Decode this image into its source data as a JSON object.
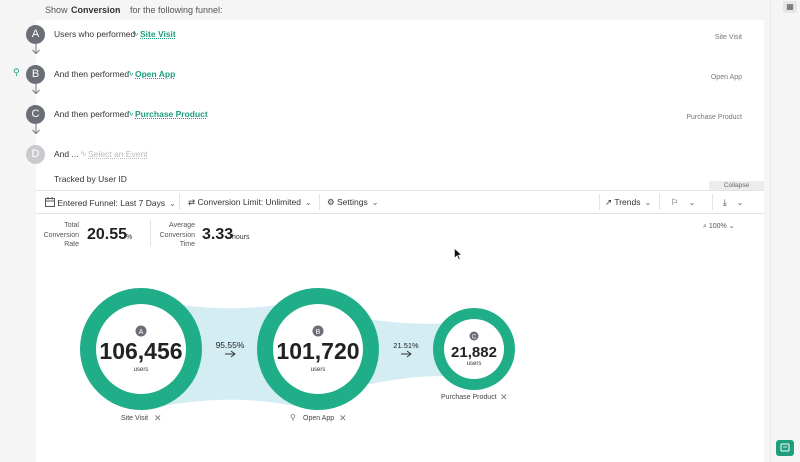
{
  "topbar": {
    "show_label": "Show",
    "metric": "Conversion",
    "suffix": "for the following funnel:"
  },
  "steps": [
    {
      "letter": "A",
      "prefix": "Users who performed",
      "event": "Site Visit",
      "right_label": "Site Visit",
      "active": true
    },
    {
      "letter": "B",
      "prefix": "And then performed",
      "event": "Open App",
      "right_label": "Open App",
      "active": true
    },
    {
      "letter": "C",
      "prefix": "And then performed",
      "event": "Purchase Product",
      "right_label": "Purchase Product",
      "active": true
    },
    {
      "letter": "D",
      "prefix": "And ...",
      "event": "Select an Event",
      "right_label": "",
      "active": false
    }
  ],
  "tracked_by": "Tracked by User ID",
  "collapse_label": "Collapse",
  "toolbar": {
    "entered_funnel": "Entered Funnel: Last 7 Days",
    "conversion_limit": "Conversion Limit: Unlimited",
    "settings": "Settings",
    "trends": "Trends"
  },
  "stats": {
    "total_label": [
      "Total",
      "Conversion",
      "Rate"
    ],
    "total_value": "20.55",
    "total_unit": "%",
    "avg_label": [
      "Average",
      "Conversion",
      "Time"
    ],
    "avg_value": "3.33",
    "avg_unit": "hours"
  },
  "zoom": "100%",
  "funnel": {
    "nodes": [
      {
        "letter": "A",
        "value": "106,456",
        "unit": "users",
        "name": "Site Visit"
      },
      {
        "letter": "B",
        "value": "101,720",
        "unit": "users",
        "name": "Open App"
      },
      {
        "letter": "C",
        "value": "21,882",
        "unit": "users",
        "name": "Purchase Product"
      }
    ],
    "conversions": [
      "95.55%",
      "21.51%"
    ]
  },
  "colors": {
    "accent": "#1d9e7c",
    "band": "#d3edf3",
    "step_circle": "#6b6e77"
  }
}
